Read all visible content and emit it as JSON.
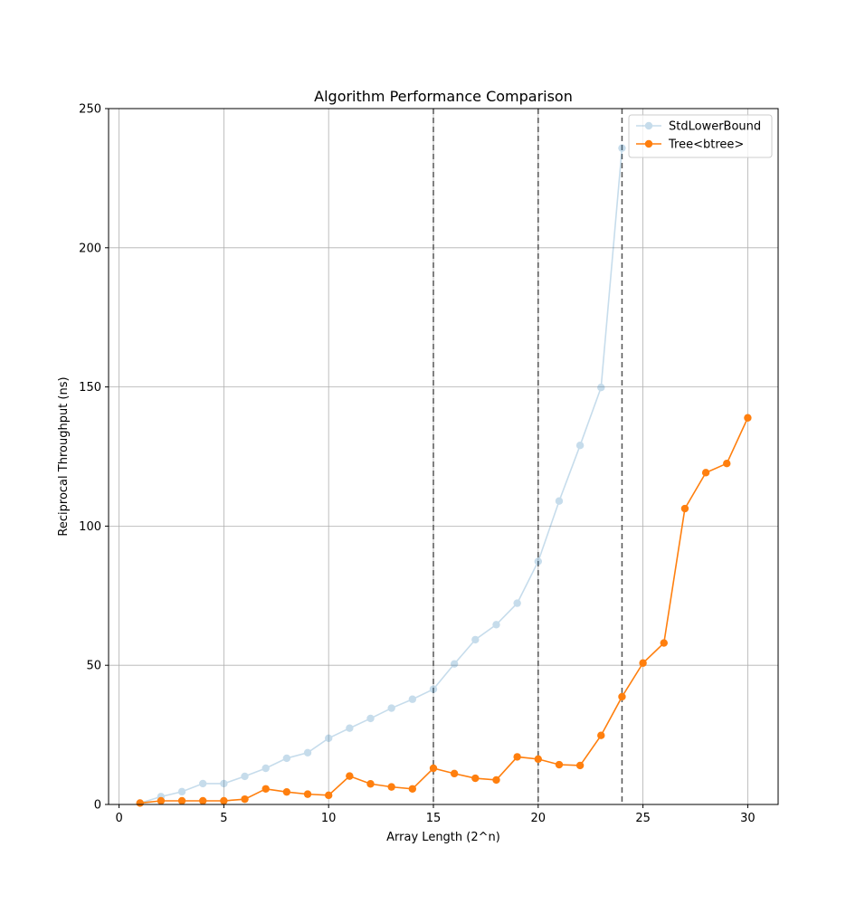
{
  "chart_data": {
    "type": "line",
    "title": "Algorithm Performance Comparison",
    "xlabel": "Array Length (2^n)",
    "ylabel": "Reciprocal Throughput (ns)",
    "xlim": [
      -0.5,
      31.45
    ],
    "ylim": [
      0,
      250
    ],
    "xticks": [
      0,
      5,
      10,
      15,
      20,
      25,
      30
    ],
    "yticks": [
      0,
      50,
      100,
      150,
      200,
      250
    ],
    "grid": true,
    "legend_position": "top-right",
    "vlines": [
      15,
      20,
      24
    ],
    "series": [
      {
        "name": "StdLowerBound",
        "color": "#1f77b4",
        "opacity": 0.25,
        "x": [
          1,
          2,
          3,
          4,
          5,
          6,
          7,
          8,
          9,
          10,
          11,
          12,
          13,
          14,
          15,
          16,
          17,
          18,
          19,
          20,
          21,
          22,
          23,
          24
        ],
        "y": [
          0.5,
          2.8,
          4.6,
          7.5,
          7.5,
          10.1,
          13.0,
          16.6,
          18.6,
          23.8,
          27.4,
          30.9,
          34.6,
          37.8,
          41.4,
          50.5,
          59.2,
          64.6,
          72.3,
          87.3,
          109.0,
          129.0,
          149.8,
          235.8
        ]
      },
      {
        "name": "Tree<btree>",
        "color": "#ff7f0e",
        "opacity": 1,
        "x": [
          1,
          2,
          3,
          4,
          5,
          6,
          7,
          8,
          9,
          10,
          11,
          12,
          13,
          14,
          15,
          16,
          17,
          18,
          19,
          20,
          21,
          22,
          23,
          24,
          25,
          26,
          27,
          28,
          29,
          30
        ],
        "y": [
          0.5,
          1.3,
          1.3,
          1.3,
          1.3,
          1.9,
          5.6,
          4.5,
          3.7,
          3.3,
          10.2,
          7.4,
          6.3,
          5.6,
          13.0,
          11.1,
          9.4,
          8.8,
          17.1,
          16.3,
          14.3,
          14.0,
          24.8,
          38.7,
          50.8,
          58.0,
          106.3,
          119.2,
          122.5,
          138.9
        ]
      }
    ]
  }
}
